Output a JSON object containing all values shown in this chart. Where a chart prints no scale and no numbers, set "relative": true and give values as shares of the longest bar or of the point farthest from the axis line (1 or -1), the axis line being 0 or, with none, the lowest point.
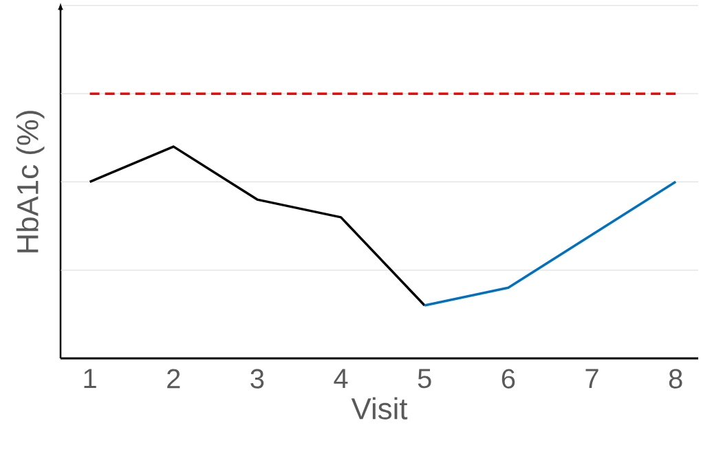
{
  "chart_data": {
    "type": "line",
    "relative": true,
    "ylabel": "HbA1c (%)",
    "xlabel": "Visit",
    "categories": [
      "1",
      "2",
      "3",
      "4",
      "5",
      "6",
      "7",
      "8"
    ],
    "marker": "none",
    "tick_labels": "x",
    "series": [
      {
        "color": "#000000",
        "values": [
          0.667,
          0.8,
          0.6,
          0.533,
          0.2,
          null,
          null,
          null
        ]
      },
      {
        "color": "#0070c0",
        "values": [
          null,
          null,
          null,
          null,
          0.2,
          0.267,
          0.467,
          0.667
        ]
      },
      {
        "color": "#ff0000",
        "line_style": "dashed",
        "values": [
          1,
          1,
          1,
          1,
          1,
          1,
          1,
          1
        ]
      }
    ],
    "ref_lines": [
      {
        "axis": "y",
        "value": 0.333,
        "color": "#d9d9d9"
      },
      {
        "axis": "y",
        "value": 0.667,
        "color": "#d9d9d9"
      },
      {
        "axis": "y",
        "value": 1,
        "color": "#d9d9d9"
      },
      {
        "axis": "y",
        "value": 1.333,
        "color": "#d9d9d9"
      }
    ]
  }
}
